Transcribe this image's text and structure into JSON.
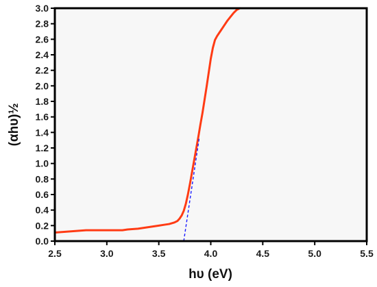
{
  "chart_data": {
    "type": "line",
    "title": "",
    "xlabel": "hυ (eV)",
    "ylabel": "(αhυ)½",
    "xlim": [
      2.5,
      5.5
    ],
    "ylim": [
      0.0,
      3.0
    ],
    "x_ticks": [
      2.5,
      3.0,
      3.5,
      4.0,
      4.5,
      5.0,
      5.5
    ],
    "x_tick_labels": [
      "2.5",
      "3.0",
      "3.5",
      "4.0",
      "4.5",
      "5.0",
      "5.5"
    ],
    "y_ticks": [
      0.0,
      0.2,
      0.4,
      0.6,
      0.8,
      1.0,
      1.2,
      1.4,
      1.6,
      1.8,
      2.0,
      2.2,
      2.4,
      2.6,
      2.8,
      3.0
    ],
    "y_tick_labels": [
      "0.0",
      "0.2",
      "0.4",
      "0.6",
      "0.8",
      "1.0",
      "1.2",
      "1.4",
      "1.6",
      "1.8",
      "2.0",
      "2.2",
      "2.4",
      "2.6",
      "2.8",
      "3.0"
    ],
    "grid": false,
    "legend": "none",
    "series": [
      {
        "color": "#ff3b14",
        "style": "solid",
        "x": [
          2.5,
          2.6,
          2.7,
          2.8,
          2.9,
          3.0,
          3.1,
          3.15,
          3.2,
          3.3,
          3.4,
          3.5,
          3.55,
          3.6,
          3.65,
          3.68,
          3.7,
          3.72,
          3.74,
          3.76,
          3.78,
          3.8,
          3.82,
          3.84,
          3.86,
          3.88,
          3.9,
          3.92,
          3.94,
          3.96,
          3.98,
          4.0,
          4.02,
          4.04,
          4.06,
          4.08,
          4.1,
          4.13,
          4.16,
          4.19,
          4.22,
          4.25,
          4.28
        ],
        "y": [
          0.11,
          0.12,
          0.13,
          0.14,
          0.14,
          0.14,
          0.14,
          0.14,
          0.15,
          0.16,
          0.18,
          0.2,
          0.21,
          0.22,
          0.24,
          0.26,
          0.29,
          0.33,
          0.39,
          0.48,
          0.6,
          0.74,
          0.89,
          1.04,
          1.19,
          1.34,
          1.5,
          1.65,
          1.82,
          1.99,
          2.17,
          2.35,
          2.49,
          2.59,
          2.64,
          2.68,
          2.72,
          2.78,
          2.84,
          2.89,
          2.94,
          2.98,
          3.0
        ]
      },
      {
        "color": "#1a1aff",
        "style": "dashed",
        "x": [
          3.74,
          3.89
        ],
        "y": [
          0.0,
          1.34
        ]
      }
    ]
  }
}
